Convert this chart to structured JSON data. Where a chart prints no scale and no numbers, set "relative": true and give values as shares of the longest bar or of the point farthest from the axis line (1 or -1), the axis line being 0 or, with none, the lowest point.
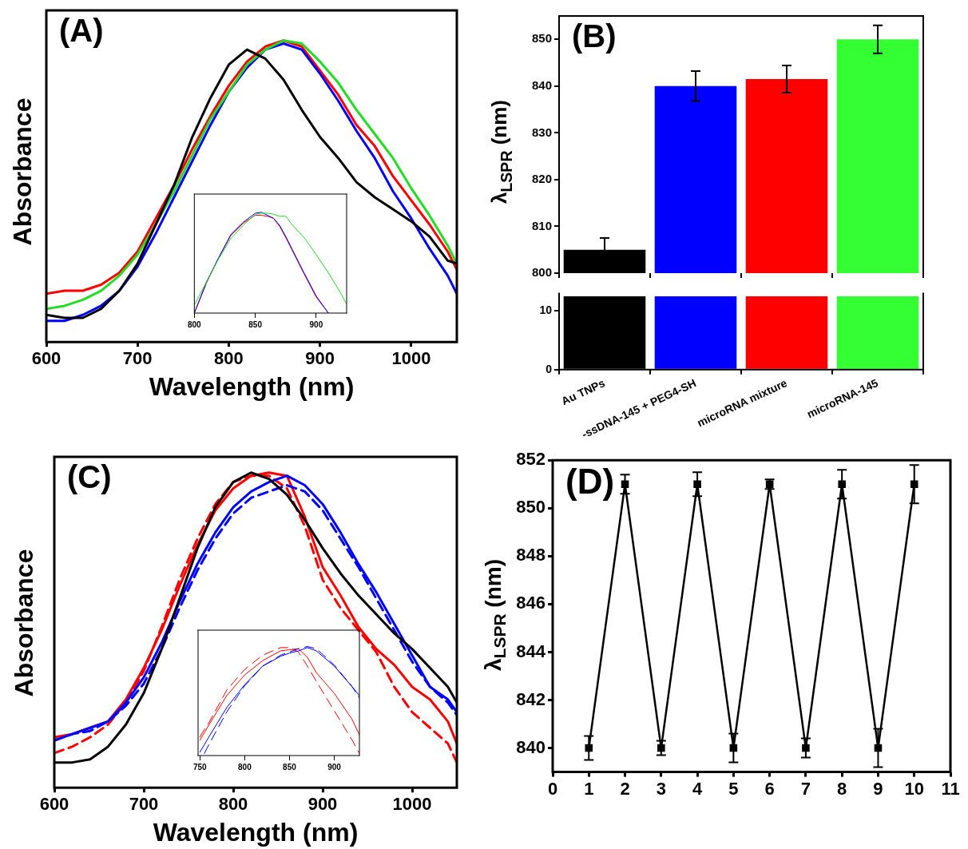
{
  "chart_data": [
    {
      "type": "line",
      "relative": true,
      "annotations": [
        "(A)"
      ],
      "xlabel": "Wavelength (nm)",
      "ylabel": "Absorbance",
      "xlim": [
        600,
        1050
      ],
      "xticks": [
        600,
        700,
        800,
        900,
        1000
      ],
      "x": [
        600,
        620,
        640,
        660,
        680,
        700,
        720,
        740,
        760,
        780,
        800,
        820,
        840,
        860,
        880,
        900,
        920,
        940,
        960,
        980,
        1000,
        1020,
        1040,
        1050
      ],
      "series": [
        {
          "color": "#000000",
          "values": [
            0.09,
            0.08,
            0.08,
            0.11,
            0.17,
            0.26,
            0.39,
            0.52,
            0.68,
            0.81,
            0.92,
            0.97,
            0.94,
            0.87,
            0.77,
            0.68,
            0.61,
            0.53,
            0.48,
            0.44,
            0.4,
            0.35,
            0.27,
            0.26
          ]
        },
        {
          "color": "#22dd22",
          "values": [
            0.11,
            0.12,
            0.14,
            0.17,
            0.22,
            0.29,
            0.39,
            0.5,
            0.62,
            0.74,
            0.83,
            0.92,
            0.97,
            1.0,
            0.99,
            0.93,
            0.86,
            0.77,
            0.69,
            0.61,
            0.51,
            0.42,
            0.32,
            0.26
          ]
        },
        {
          "color": "#0000ff",
          "values": [
            0.07,
            0.07,
            0.09,
            0.12,
            0.17,
            0.25,
            0.36,
            0.48,
            0.6,
            0.72,
            0.83,
            0.91,
            0.97,
            0.99,
            0.97,
            0.89,
            0.8,
            0.7,
            0.61,
            0.5,
            0.41,
            0.31,
            0.22,
            0.16
          ]
        },
        {
          "color": "#ff0000",
          "values": [
            0.16,
            0.17,
            0.17,
            0.19,
            0.23,
            0.3,
            0.41,
            0.52,
            0.64,
            0.75,
            0.85,
            0.93,
            0.98,
            1.0,
            0.98,
            0.9,
            0.82,
            0.72,
            0.65,
            0.55,
            0.47,
            0.39,
            0.3,
            0.24
          ]
        }
      ]
    },
    {
      "type": "line",
      "relative": true,
      "xlim": [
        800,
        925
      ],
      "xticks": [
        800,
        850,
        900
      ],
      "x": [
        800,
        810,
        820,
        830,
        840,
        850,
        855,
        860,
        865,
        870,
        875,
        880,
        890,
        900,
        910,
        920,
        925
      ],
      "series": [
        {
          "color": "#22dd22",
          "values": [
            0.08,
            0.31,
            0.54,
            0.74,
            0.87,
            0.98,
            0.99,
            0.99,
            0.98,
            0.96,
            0.96,
            0.88,
            0.75,
            0.58,
            0.4,
            0.2,
            0.09
          ]
        },
        {
          "color": "#0000ff",
          "values": [
            0,
            0.31,
            0.55,
            0.78,
            0.9,
            0.99,
            1.0,
            0.97,
            0.94,
            0.87,
            0.76,
            0.64,
            0.4,
            0.17,
            0,
            null,
            null
          ]
        },
        {
          "color": "#ff0000",
          "values": [
            0,
            0.3,
            0.55,
            0.77,
            0.89,
            0.97,
            0.97,
            0.96,
            0.94,
            0.86,
            0.75,
            0.63,
            0.39,
            0.16,
            0,
            null,
            null
          ]
        }
      ]
    },
    {
      "type": "bar",
      "annotations": [
        "(B)"
      ],
      "ylabel": "λ$_{LSPR}$ (nm)",
      "tick_labels": "y",
      "categories": [
        null,
        null,
        null,
        null
      ],
      "values": [
        805,
        840,
        841.5,
        850
      ],
      "errors": [
        2.5,
        3.2,
        2.9,
        3
      ],
      "colors": [
        "#000000",
        "#0000ff",
        "#ff0000",
        "#33ff33"
      ],
      "ylim": [
        800,
        855
      ],
      "yticks": [
        800,
        810,
        820,
        830,
        840,
        850
      ]
    },
    {
      "type": "bar",
      "categories": [
        "Au TNPs",
        "-ssDNA-145 + PEG4-SH",
        "microRNA mixture",
        "microRNA-145"
      ],
      "values": [
        12.5,
        12.5,
        12.5,
        12.5
      ],
      "colors": [
        "#000000",
        "#0000ff",
        "#ff0000",
        "#33ff33"
      ],
      "ylim": [
        0,
        13
      ],
      "yticks": [
        0,
        10
      ]
    },
    {
      "type": "line",
      "relative": true,
      "annotations": [
        "(C)"
      ],
      "xlabel": "Wavelength (nm)",
      "ylabel": "Absorbance",
      "xlim": [
        600,
        1050
      ],
      "xticks": [
        600,
        700,
        800,
        900,
        1000
      ],
      "x": [
        600,
        620,
        640,
        660,
        680,
        700,
        720,
        740,
        760,
        780,
        800,
        820,
        840,
        860,
        880,
        900,
        920,
        940,
        960,
        980,
        1000,
        1020,
        1040,
        1050
      ],
      "series": [
        {
          "color": "#000000",
          "values": [
            0.08,
            0.08,
            0.09,
            0.13,
            0.2,
            0.3,
            0.44,
            0.6,
            0.76,
            0.89,
            0.97,
            1.0,
            0.98,
            0.93,
            0.85,
            0.76,
            0.68,
            0.61,
            0.55,
            0.49,
            0.44,
            0.38,
            0.32,
            0.27
          ]
        },
        {
          "color": "#0000ff",
          "line_style": "dashed",
          "values": [
            0.15,
            0.17,
            0.18,
            0.21,
            0.26,
            0.33,
            0.44,
            0.57,
            0.69,
            0.79,
            0.87,
            0.92,
            0.94,
            0.96,
            0.94,
            0.88,
            0.79,
            0.7,
            0.6,
            0.5,
            0.4,
            0.32,
            0.27,
            0.23
          ]
        },
        {
          "color": "#0000ff",
          "values": [
            0.15,
            0.17,
            0.19,
            0.21,
            0.27,
            0.35,
            0.46,
            0.59,
            0.71,
            0.81,
            0.89,
            0.94,
            0.97,
            0.99,
            0.96,
            0.9,
            0.81,
            0.71,
            0.62,
            0.52,
            0.42,
            0.32,
            0.28,
            0.24
          ]
        },
        {
          "color": "#ff0000",
          "line_style": "dashed",
          "values": [
            0.11,
            0.13,
            0.16,
            0.2,
            0.27,
            0.37,
            0.51,
            0.66,
            0.79,
            0.9,
            0.97,
            0.99,
            0.99,
            0.95,
            0.83,
            0.66,
            0.57,
            0.5,
            0.43,
            0.32,
            0.24,
            0.19,
            0.14,
            0.08
          ]
        },
        {
          "color": "#ff0000",
          "values": [
            0.16,
            0.17,
            0.19,
            0.21,
            0.28,
            0.38,
            0.5,
            0.64,
            0.77,
            0.88,
            0.95,
            0.99,
            1.0,
            0.99,
            0.86,
            0.7,
            0.61,
            0.51,
            0.44,
            0.39,
            0.32,
            0.28,
            0.21,
            0.14
          ]
        }
      ]
    },
    {
      "type": "line",
      "relative": true,
      "xlim": [
        748,
        928
      ],
      "xticks": [
        750,
        800,
        850,
        900
      ],
      "x": [
        750,
        755,
        760,
        780,
        800,
        820,
        840,
        850,
        860,
        870,
        880,
        900,
        920,
        928
      ],
      "series": [
        {
          "color": "#0000ff",
          "line_style": "dashed",
          "values": [
            null,
            0.02,
            0.1,
            0.4,
            0.64,
            0.82,
            0.92,
            0.95,
            0.98,
            1.0,
            0.98,
            0.83,
            0.63,
            0.53
          ]
        },
        {
          "color": "#0000ff",
          "values": [
            0.03,
            0.1,
            0.17,
            0.44,
            0.65,
            0.82,
            0.91,
            0.94,
            0.96,
            0.99,
            0.96,
            0.82,
            0.63,
            0.55
          ]
        },
        {
          "color": "#ff0000",
          "line_style": "dashed",
          "values": [
            0.17,
            0.24,
            0.3,
            0.6,
            0.79,
            0.92,
            0.99,
            0.99,
            0.95,
            0.82,
            0.68,
            0.41,
            0.14,
            0.02
          ]
        },
        {
          "color": "#ff0000",
          "values": [
            0.14,
            0.21,
            0.28,
            0.55,
            0.74,
            0.87,
            0.96,
            0.97,
            0.98,
            0.9,
            0.76,
            0.57,
            0.33,
            0.19
          ]
        }
      ]
    },
    {
      "type": "line",
      "annotations": [
        "(D)"
      ],
      "ylabel": "λ$_{LSPR}$ (nm)",
      "marker": "square",
      "color": "#000000",
      "x": [
        1,
        2,
        3,
        4,
        5,
        6,
        7,
        8,
        9,
        10
      ],
      "values": [
        840,
        851,
        840,
        851,
        840,
        851,
        840,
        851,
        840,
        851
      ],
      "errors": [
        [
          839.5,
          840.5
        ],
        [
          850.6,
          851.4
        ],
        [
          839.7,
          840.3
        ],
        [
          850.5,
          851.5
        ],
        [
          839.4,
          840.6
        ],
        [
          850.8,
          851.2
        ],
        [
          839.6,
          840.4
        ],
        [
          850.4,
          851.6
        ],
        [
          839.2,
          840.8
        ],
        [
          850.2,
          851.8
        ]
      ],
      "xlim": [
        0,
        11
      ],
      "xticks": [
        0,
        1,
        2,
        3,
        4,
        5,
        6,
        7,
        8,
        9,
        10,
        11
      ],
      "ylim": [
        839,
        852
      ],
      "yticks": [
        840,
        842,
        844,
        846,
        848,
        850,
        852
      ]
    }
  ]
}
